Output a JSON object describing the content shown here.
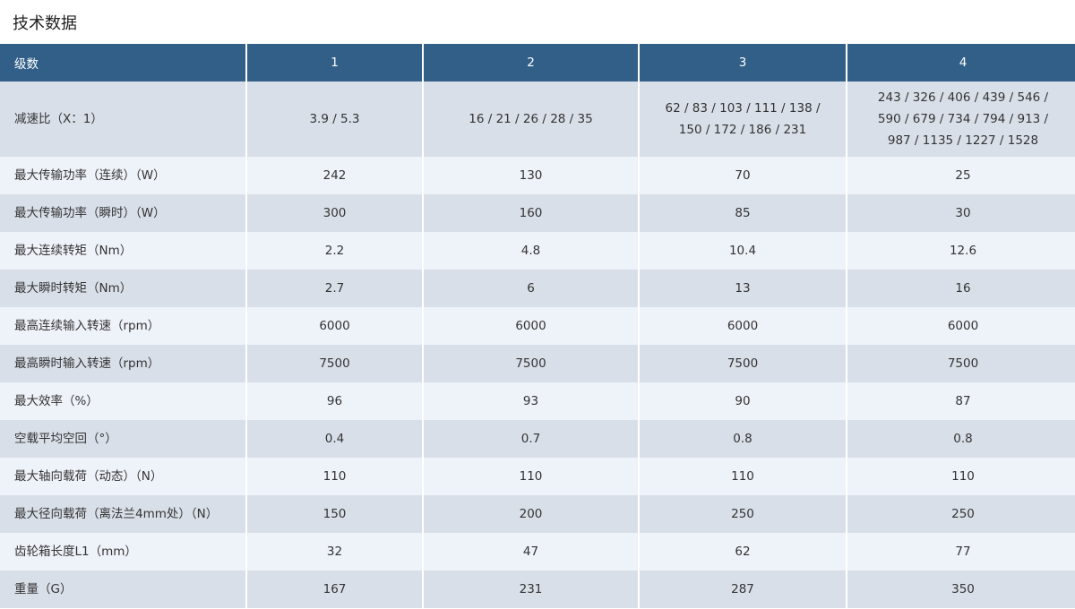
{
  "title": "技术数据",
  "header": [
    "级数",
    "1",
    "2",
    "3",
    "4"
  ],
  "rows": [
    {
      "label": "减速比（X：1）",
      "values": [
        "3.9 / 5.3",
        "16 / 21 / 26 / 28 / 35",
        "62 / 83 / 103 / 111 / 138 /\n150 / 172 / 186 / 231",
        "243 / 326 / 406 / 439 / 546 /\n590 / 679 / 734 / 794 / 913 /\n987 / 1135 / 1227 / 1528"
      ]
    },
    {
      "label": "最大传输功率（连续）（W）",
      "values": [
        "242",
        "130",
        "70",
        "25"
      ]
    },
    {
      "label": "最大传输功率（瞬时）（W）",
      "values": [
        "300",
        "160",
        "85",
        "30"
      ]
    },
    {
      "label": "最大连续转矩（Nm）",
      "values": [
        "2.2",
        "4.8",
        "10.4",
        "12.6"
      ]
    },
    {
      "label": "最大瞬时转矩（Nm）",
      "values": [
        "2.7",
        "6",
        "13",
        "16"
      ]
    },
    {
      "label": "最高连续输入转速（rpm）",
      "values": [
        "6000",
        "6000",
        "6000",
        "6000"
      ]
    },
    {
      "label": "最高瞬时输入转速（rpm）",
      "values": [
        "7500",
        "7500",
        "7500",
        "7500"
      ]
    },
    {
      "label": "最大效率（%）",
      "values": [
        "96",
        "93",
        "90",
        "87"
      ]
    },
    {
      "label": "空载平均空回（°）",
      "values": [
        "0.4",
        "0.7",
        "0.8",
        "0.8"
      ]
    },
    {
      "label": "最大轴向载荷（动态）（N）",
      "values": [
        "110",
        "110",
        "110",
        "110"
      ]
    },
    {
      "label": "最大径向载荷（离法兰4mm处）（N）",
      "values": [
        "150",
        "200",
        "250",
        "250"
      ]
    },
    {
      "label": "齿轮箱长度L1（mm）",
      "values": [
        "32",
        "47",
        "62",
        "77"
      ]
    },
    {
      "label": "重量（G）",
      "values": [
        "167",
        "231",
        "287",
        "350"
      ]
    }
  ],
  "colors": {
    "header_bg": "#325f88",
    "row_odd": "#d9dfe9",
    "row_even": "#eef2f9"
  }
}
